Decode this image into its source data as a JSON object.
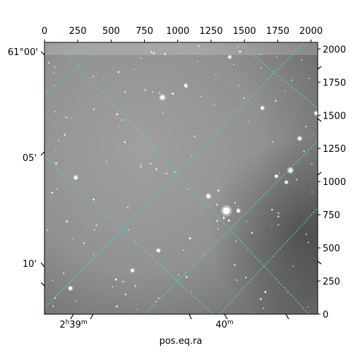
{
  "chart_data": {
    "type": "image",
    "image": "astronomical-sky-image-grayscale",
    "xlabel": "pos.eq.ra",
    "ylabel": "",
    "pixel_axes": {
      "x": {
        "range": [
          0,
          2050
        ],
        "ticks": [
          0,
          250,
          500,
          750,
          1000,
          1250,
          1500,
          1750,
          2000
        ]
      },
      "y": {
        "range": [
          0,
          2050
        ],
        "ticks": [
          0,
          250,
          500,
          750,
          1000,
          1250,
          1500,
          1750,
          2000
        ]
      }
    },
    "world_axes": {
      "ra_ticks": [
        {
          "label": "2h39m",
          "main": "2",
          "sup1": "h",
          "mid": "39",
          "sup2": "m"
        },
        {
          "label": "40m",
          "main": "40",
          "sup1": "m"
        }
      ],
      "dec_ticks": [
        "61°00'",
        "05'",
        "10'"
      ]
    },
    "grid": true,
    "grid_color": "#40e0d0",
    "colormap": "gray",
    "bright_sources": [
      {
        "x": 1365,
        "y": 780,
        "r": 5
      },
      {
        "x": 885,
        "y": 1635,
        "r": 3
      },
      {
        "x": 1845,
        "y": 1085,
        "r": 3
      },
      {
        "x": 1230,
        "y": 890,
        "r": 2.6
      },
      {
        "x": 235,
        "y": 1030,
        "r": 2.4
      },
      {
        "x": 2040,
        "y": 1515,
        "r": 2.4
      },
      {
        "x": 195,
        "y": 195,
        "r": 2.4
      },
      {
        "x": 1915,
        "y": 1325,
        "r": 2.4
      },
      {
        "x": 1455,
        "y": 780,
        "r": 2.2
      },
      {
        "x": 855,
        "y": 480,
        "r": 2.2
      },
      {
        "x": 660,
        "y": 330,
        "r": 2.2
      },
      {
        "x": 1635,
        "y": 1555,
        "r": 2.2
      },
      {
        "x": 1390,
        "y": 1940,
        "r": 2.0
      },
      {
        "x": 1740,
        "y": 1040,
        "r": 2.0
      },
      {
        "x": 1815,
        "y": 995,
        "r": 2.0
      },
      {
        "x": 1060,
        "y": 1725,
        "r": 2.0
      }
    ]
  }
}
